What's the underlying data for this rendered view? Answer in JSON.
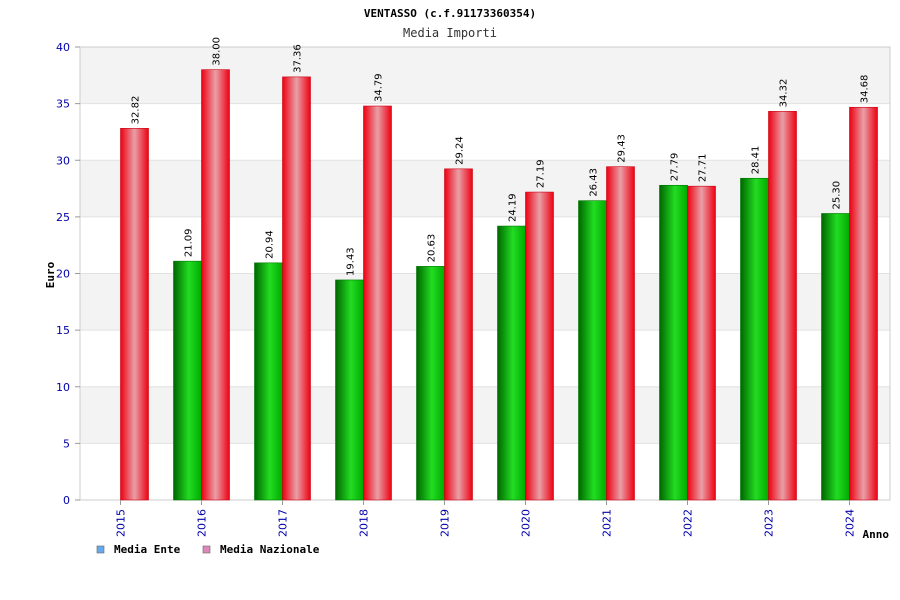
{
  "chart_data": {
    "type": "bar",
    "title": "VENTASSO (c.f.91173360354)",
    "subtitle": "Media Importi",
    "xlabel": "Anno",
    "ylabel": "Euro",
    "ylim": [
      0,
      40
    ],
    "yticks": [
      "0",
      "5",
      "10",
      "15",
      "20",
      "25",
      "30",
      "35",
      "40"
    ],
    "grid": true,
    "legend_position": "bottom-left",
    "categories": [
      "2015",
      "2016",
      "2017",
      "2018",
      "2019",
      "2020",
      "2021",
      "2022",
      "2023",
      "2024"
    ],
    "series": [
      {
        "name": "Media Ente",
        "color": "#00bb00",
        "legend_color": "#66aaee",
        "values": [
          null,
          21.09,
          20.94,
          19.43,
          20.63,
          24.19,
          26.43,
          27.79,
          28.41,
          25.3
        ],
        "labels": [
          "",
          "21.09",
          "20.94",
          "19.43",
          "20.63",
          "24.19",
          "26.43",
          "27.79",
          "28.41",
          "25.30"
        ]
      },
      {
        "name": "Media Nazionale",
        "color": "#ee1122",
        "legend_color": "#dd88bb",
        "values": [
          32.82,
          38.0,
          37.36,
          34.79,
          29.24,
          27.19,
          29.43,
          27.71,
          34.32,
          34.68
        ],
        "labels": [
          "32.82",
          "38.00",
          "37.36",
          "34.79",
          "29.24",
          "27.19",
          "29.43",
          "27.71",
          "34.32",
          "34.68"
        ]
      }
    ]
  }
}
